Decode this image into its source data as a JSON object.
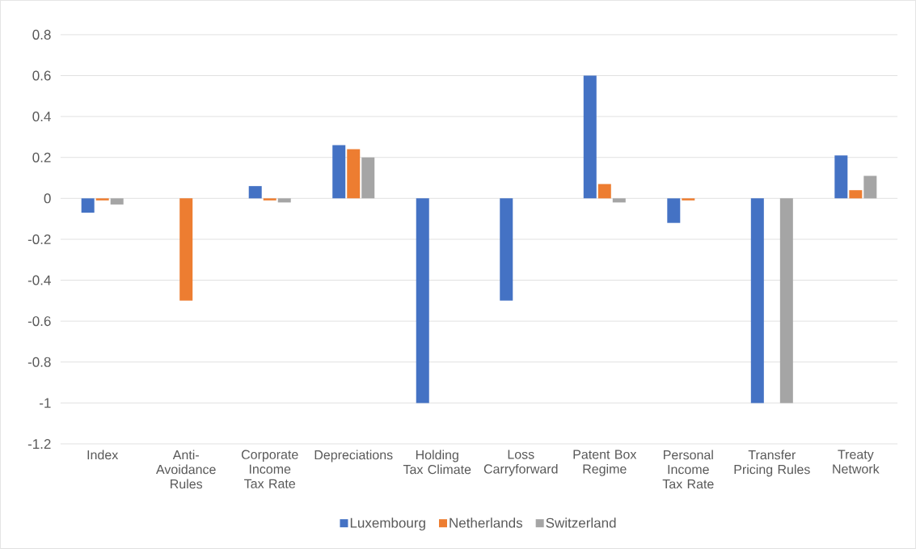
{
  "chart_data": {
    "type": "bar",
    "categories": [
      "Index",
      "Anti-Avoidance Rules",
      "Corporate Income Tax Rate",
      "Depreciations",
      "Holding Tax Climate",
      "Loss Carryforward",
      "Patent Box Regime",
      "Personal Income Tax Rate",
      "Transfer Pricing Rules",
      "Treaty Network"
    ],
    "series": [
      {
        "name": "Luxembourg",
        "color": "#4472c4",
        "values": [
          -0.07,
          null,
          0.06,
          0.26,
          -1,
          -0.5,
          0.6,
          -0.12,
          -1,
          0.21
        ]
      },
      {
        "name": "Netherlands",
        "color": "#ed7d31",
        "values": [
          -0.01,
          -0.5,
          -0.01,
          0.24,
          null,
          null,
          0.07,
          -0.01,
          null,
          0.04
        ]
      },
      {
        "name": "Switzerland",
        "color": "#a5a5a5",
        "values": [
          -0.03,
          null,
          -0.02,
          0.2,
          null,
          null,
          -0.02,
          null,
          -1,
          0.11
        ]
      }
    ],
    "ylim": [
      -1.2,
      0.8
    ],
    "yticks": [
      -1.2,
      -1,
      -0.8,
      -0.6,
      -0.4,
      -0.2,
      0,
      0.2,
      0.4,
      0.6,
      0.8
    ],
    "grid": "y",
    "legend": "bottom"
  }
}
